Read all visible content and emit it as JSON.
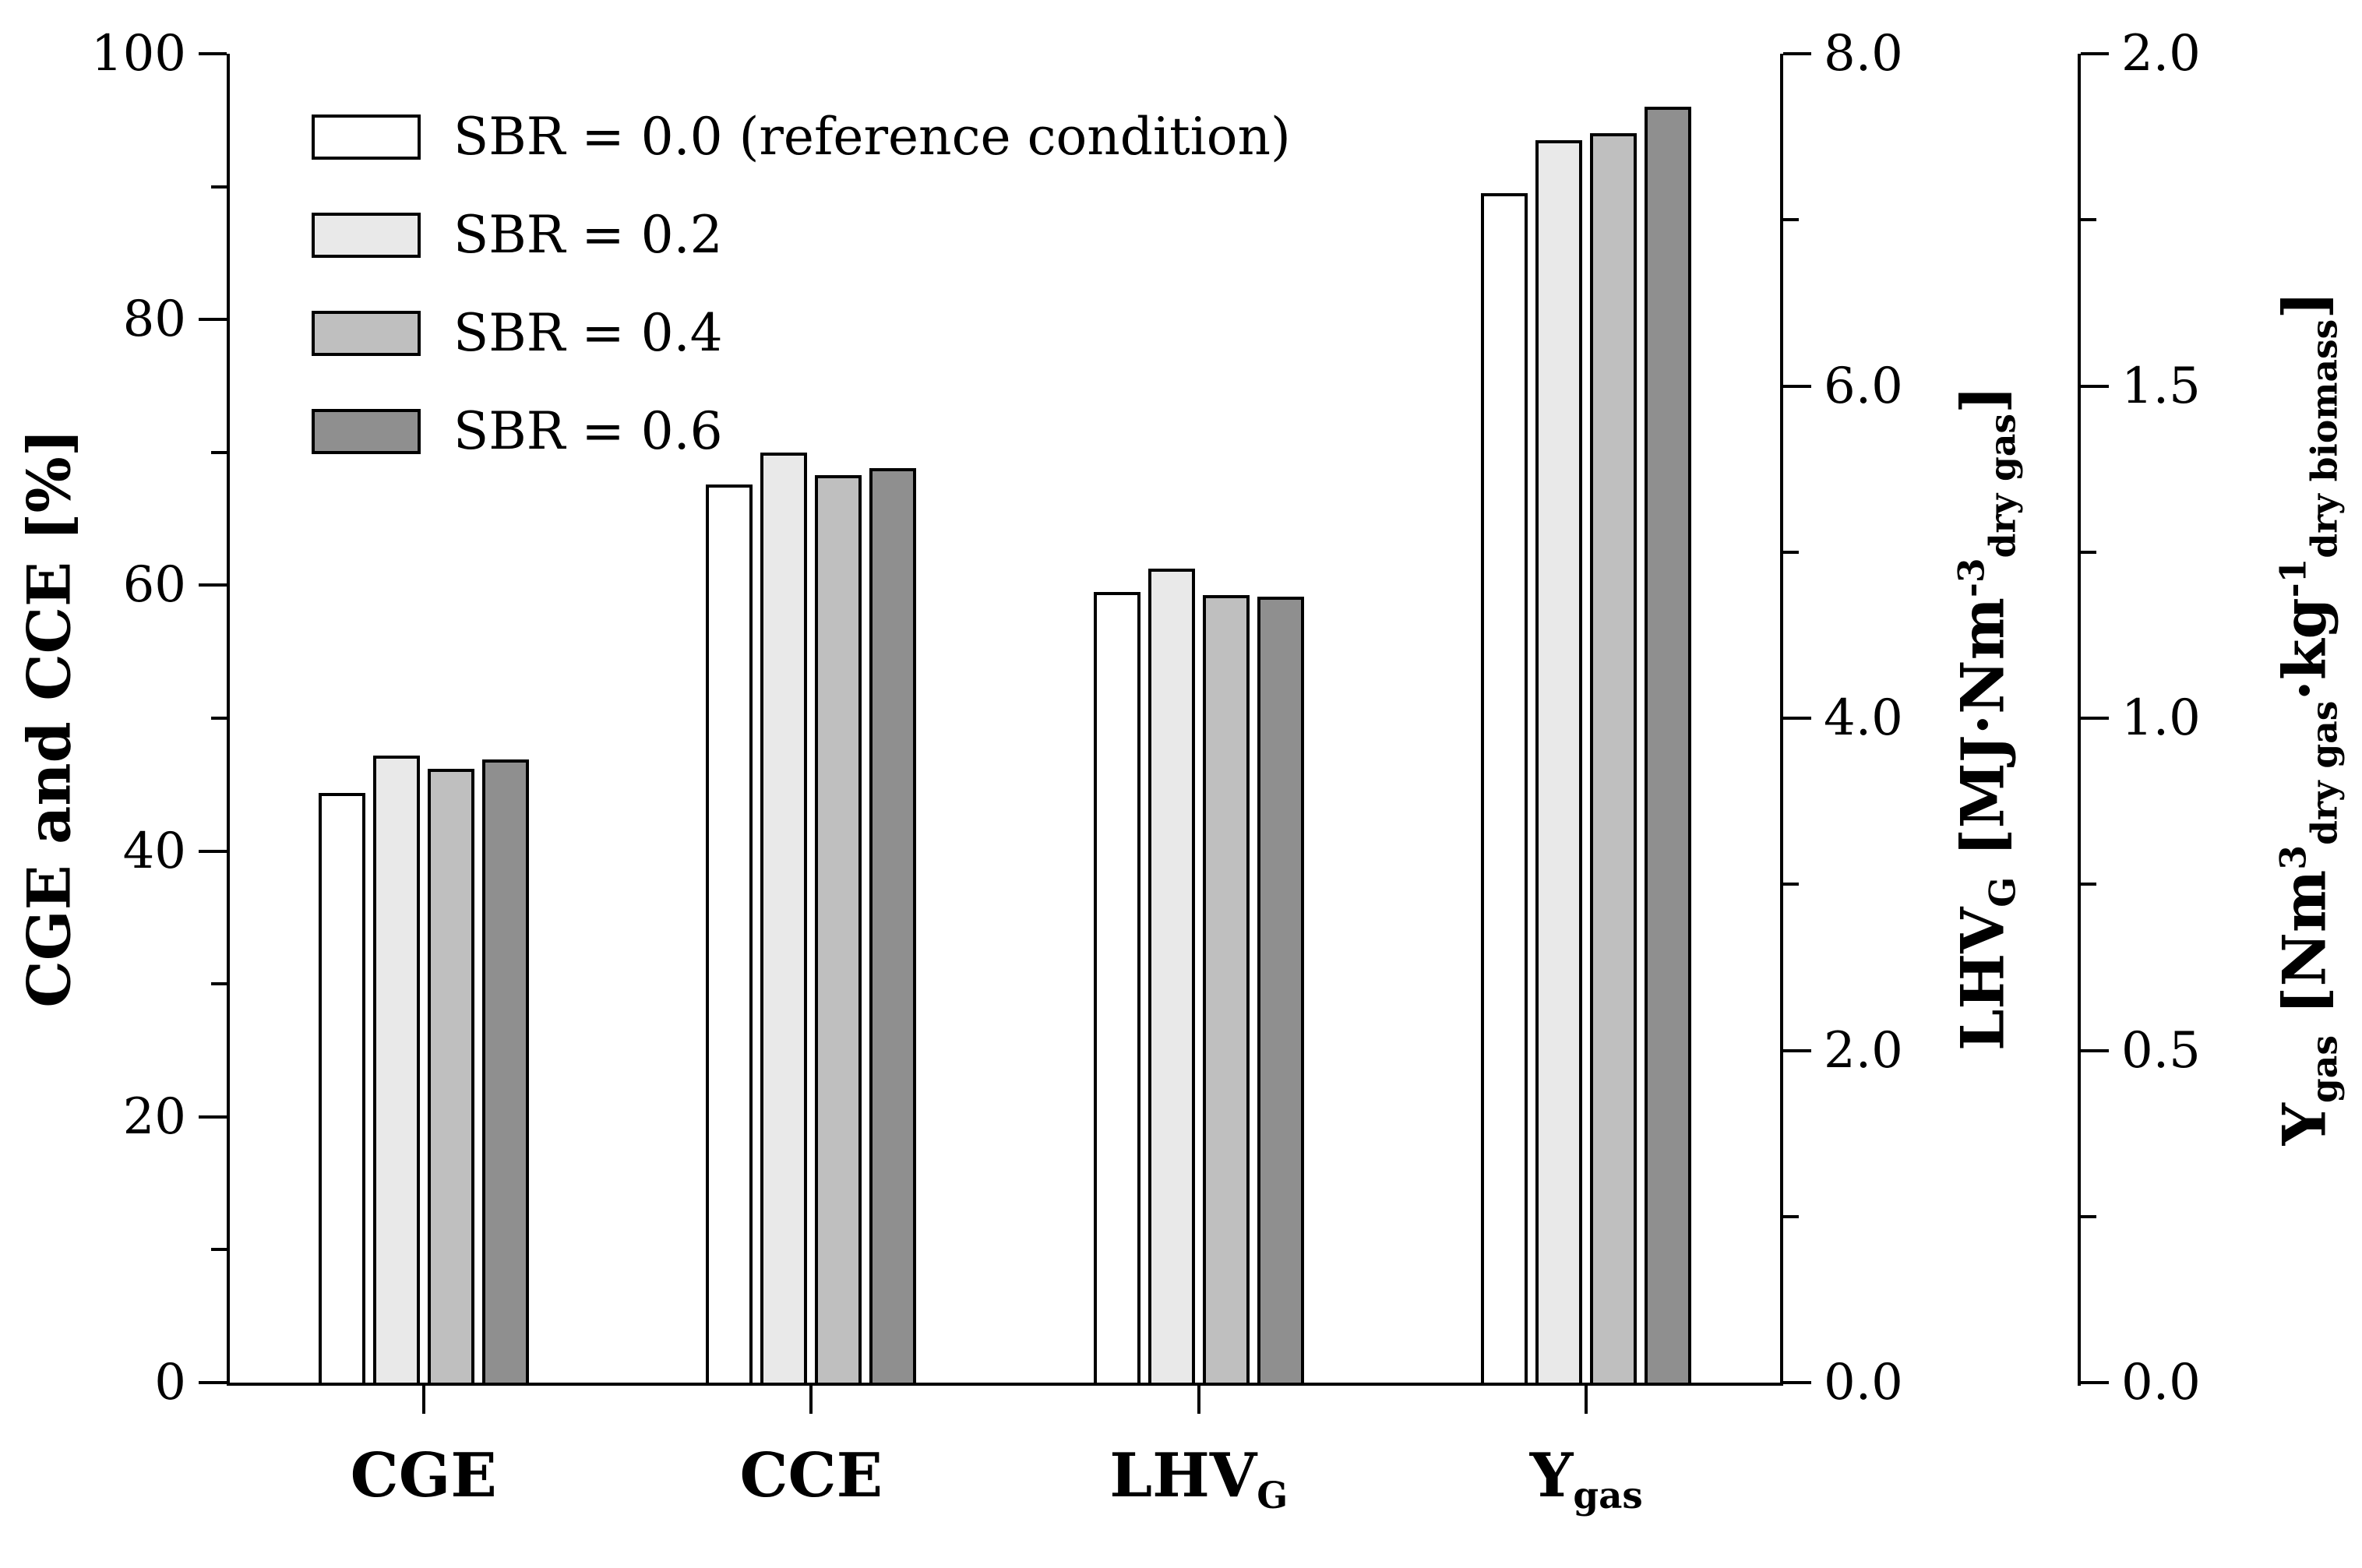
{
  "chart_data": {
    "type": "bar",
    "title": "",
    "categories": [
      "CGE",
      "CCE",
      "LHV_G",
      "Y_gas"
    ],
    "category_axis": [
      "left",
      "left",
      "lhv",
      "ygas"
    ],
    "category_label_segments": [
      [
        {
          "t": "CGE",
          "s": "n"
        }
      ],
      [
        {
          "t": "CCE",
          "s": "n"
        }
      ],
      [
        {
          "t": "LHV",
          "s": "n"
        },
        {
          "t": "G",
          "s": "sub"
        }
      ],
      [
        {
          "t": "Y",
          "s": "n"
        },
        {
          "t": "gas",
          "s": "sub"
        }
      ]
    ],
    "series": [
      {
        "name": "SBR = 0.0 (reference condition)",
        "fill": "#ffffff",
        "values": [
          44.4,
          67.6,
          4.76,
          1.79
        ]
      },
      {
        "name": "SBR = 0.2",
        "fill": "#e9e9e9",
        "values": [
          47.2,
          70.0,
          4.9,
          1.87
        ]
      },
      {
        "name": "SBR = 0.4",
        "fill": "#bfbfbf",
        "values": [
          46.2,
          68.3,
          4.74,
          1.88
        ]
      },
      {
        "name": "SBR = 0.6",
        "fill": "#8f8f8f",
        "values": [
          46.9,
          68.8,
          4.73,
          1.92
        ]
      }
    ],
    "axes": {
      "left": {
        "title": "CGE and CCE [%]",
        "title_segments": [
          {
            "t": "CGE and CCE [%]",
            "s": "n"
          }
        ],
        "range": [
          0,
          100
        ],
        "minor_step": 10,
        "ticks": [
          {
            "v": 0,
            "t": "0"
          },
          {
            "v": 20,
            "t": "20"
          },
          {
            "v": 40,
            "t": "40"
          },
          {
            "v": 60,
            "t": "60"
          },
          {
            "v": 80,
            "t": "80"
          },
          {
            "v": 100,
            "t": "100"
          }
        ]
      },
      "lhv": {
        "title": "LHV_G [MJ·Nm^-3 dry gas]",
        "title_segments": [
          {
            "t": "LHV",
            "s": "n"
          },
          {
            "t": "G",
            "s": "sub"
          },
          {
            "t": " [MJ·Nm",
            "s": "n"
          },
          {
            "t": "-3",
            "s": "sup"
          },
          {
            "t": "dry gas",
            "s": "sub"
          },
          {
            "t": "]",
            "s": "n"
          }
        ],
        "range": [
          0,
          8
        ],
        "minor_step": 1,
        "ticks": [
          {
            "v": 0,
            "t": "0.0"
          },
          {
            "v": 2,
            "t": "2.0"
          },
          {
            "v": 4,
            "t": "4.0"
          },
          {
            "v": 6,
            "t": "6.0"
          },
          {
            "v": 8,
            "t": "8.0"
          }
        ]
      },
      "ygas": {
        "title": "Y_gas [Nm^3 dry gas·kg^-1 dry biomass]",
        "title_segments": [
          {
            "t": "Y",
            "s": "n"
          },
          {
            "t": "gas",
            "s": "sub"
          },
          {
            "t": " [Nm",
            "s": "n"
          },
          {
            "t": "3",
            "s": "sup"
          },
          {
            "t": "dry gas",
            "s": "sub"
          },
          {
            "t": "·kg",
            "s": "n"
          },
          {
            "t": "-1",
            "s": "sup"
          },
          {
            "t": "dry biomass",
            "s": "sub"
          },
          {
            "t": "]",
            "s": "n"
          }
        ],
        "range": [
          0,
          2
        ],
        "minor_step": 0.25,
        "ticks": [
          {
            "v": 0,
            "t": "0.0"
          },
          {
            "v": 0.5,
            "t": "0.5"
          },
          {
            "v": 1,
            "t": "1.0"
          },
          {
            "v": 1.5,
            "t": "1.5"
          },
          {
            "v": 2,
            "t": "2.0"
          }
        ]
      }
    },
    "legend": {
      "position": "top-left-inside"
    }
  }
}
